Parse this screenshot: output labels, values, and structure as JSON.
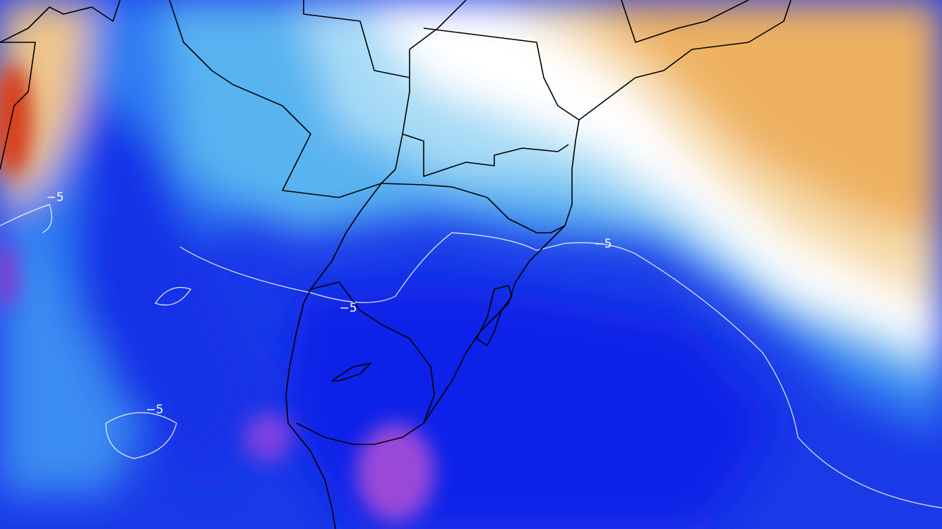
{
  "contour_labels": [
    "−5",
    "−5",
    "−5",
    "−5"
  ]
}
